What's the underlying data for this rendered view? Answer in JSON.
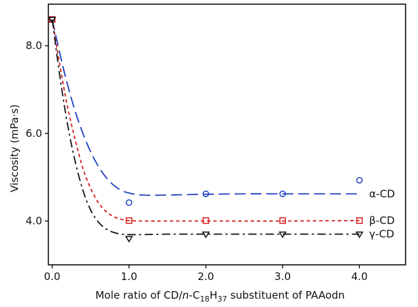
{
  "chart_data": {
    "type": "scatter",
    "title": "",
    "xlabel_parts": [
      "Mole ratio of CD/",
      "n",
      "-C",
      "18",
      "H",
      "37",
      " substituent of PAAodn"
    ],
    "ylabel": "Viscosity   (mPa·s)",
    "xlim": [
      -0.05,
      4.6
    ],
    "ylim": [
      3.0,
      8.95
    ],
    "xticks": [
      0.0,
      1.0,
      2.0,
      3.0,
      4.0
    ],
    "xtick_labels": [
      "0.0",
      "1.0",
      "2.0",
      "3.0",
      "4.0"
    ],
    "yticks": [
      4.0,
      6.0,
      8.0
    ],
    "ytick_labels": [
      "4.0",
      "6.0",
      "8.0"
    ],
    "grid": false,
    "series": [
      {
        "name": "α-CD",
        "marker": "circle",
        "line": "long-dash",
        "color": "#1f3fbf",
        "x": [
          0.0,
          1.0,
          2.0,
          3.0,
          4.0
        ],
        "y": [
          8.6,
          4.42,
          4.62,
          4.62,
          4.93
        ],
        "fit_x": [
          0.0,
          0.15,
          0.3,
          0.45,
          0.6,
          0.75,
          0.9,
          1.05,
          1.2,
          1.4,
          1.7,
          2.0,
          2.5,
          3.0,
          3.5,
          4.0
        ],
        "fit_y": [
          8.6,
          7.45,
          6.5,
          5.78,
          5.25,
          4.9,
          4.7,
          4.62,
          4.59,
          4.59,
          4.6,
          4.61,
          4.62,
          4.62,
          4.62,
          4.62
        ]
      },
      {
        "name": "β-CD",
        "marker": "square",
        "line": "short-dash",
        "color": "#d42020",
        "x": [
          0.0,
          1.0,
          2.0,
          3.0,
          4.0
        ],
        "y": [
          8.6,
          4.01,
          4.01,
          4.01,
          4.01
        ],
        "fit_x": [
          0.0,
          0.1,
          0.2,
          0.3,
          0.4,
          0.5,
          0.6,
          0.7,
          0.8,
          0.9,
          1.0,
          1.2,
          1.5,
          2.0,
          3.0,
          4.0
        ],
        "fit_y": [
          8.6,
          7.55,
          6.6,
          5.85,
          5.2,
          4.75,
          4.42,
          4.22,
          4.1,
          4.04,
          4.01,
          4.0,
          4.0,
          4.0,
          4.0,
          4.01
        ]
      },
      {
        "name": "γ-CD",
        "marker": "triangle-down",
        "line": "dash-dot",
        "color": "#111111",
        "x": [
          0.0,
          1.0,
          2.0,
          3.0,
          4.0
        ],
        "y": [
          8.6,
          3.6,
          3.7,
          3.7,
          3.7
        ],
        "fit_x": [
          0.0,
          0.1,
          0.2,
          0.3,
          0.4,
          0.5,
          0.6,
          0.7,
          0.8,
          0.9,
          1.0,
          1.2,
          1.5,
          2.0,
          3.0,
          4.0
        ],
        "fit_y": [
          8.6,
          7.3,
          6.2,
          5.35,
          4.7,
          4.25,
          3.98,
          3.82,
          3.74,
          3.7,
          3.69,
          3.69,
          3.7,
          3.7,
          3.7,
          3.7
        ]
      }
    ]
  }
}
